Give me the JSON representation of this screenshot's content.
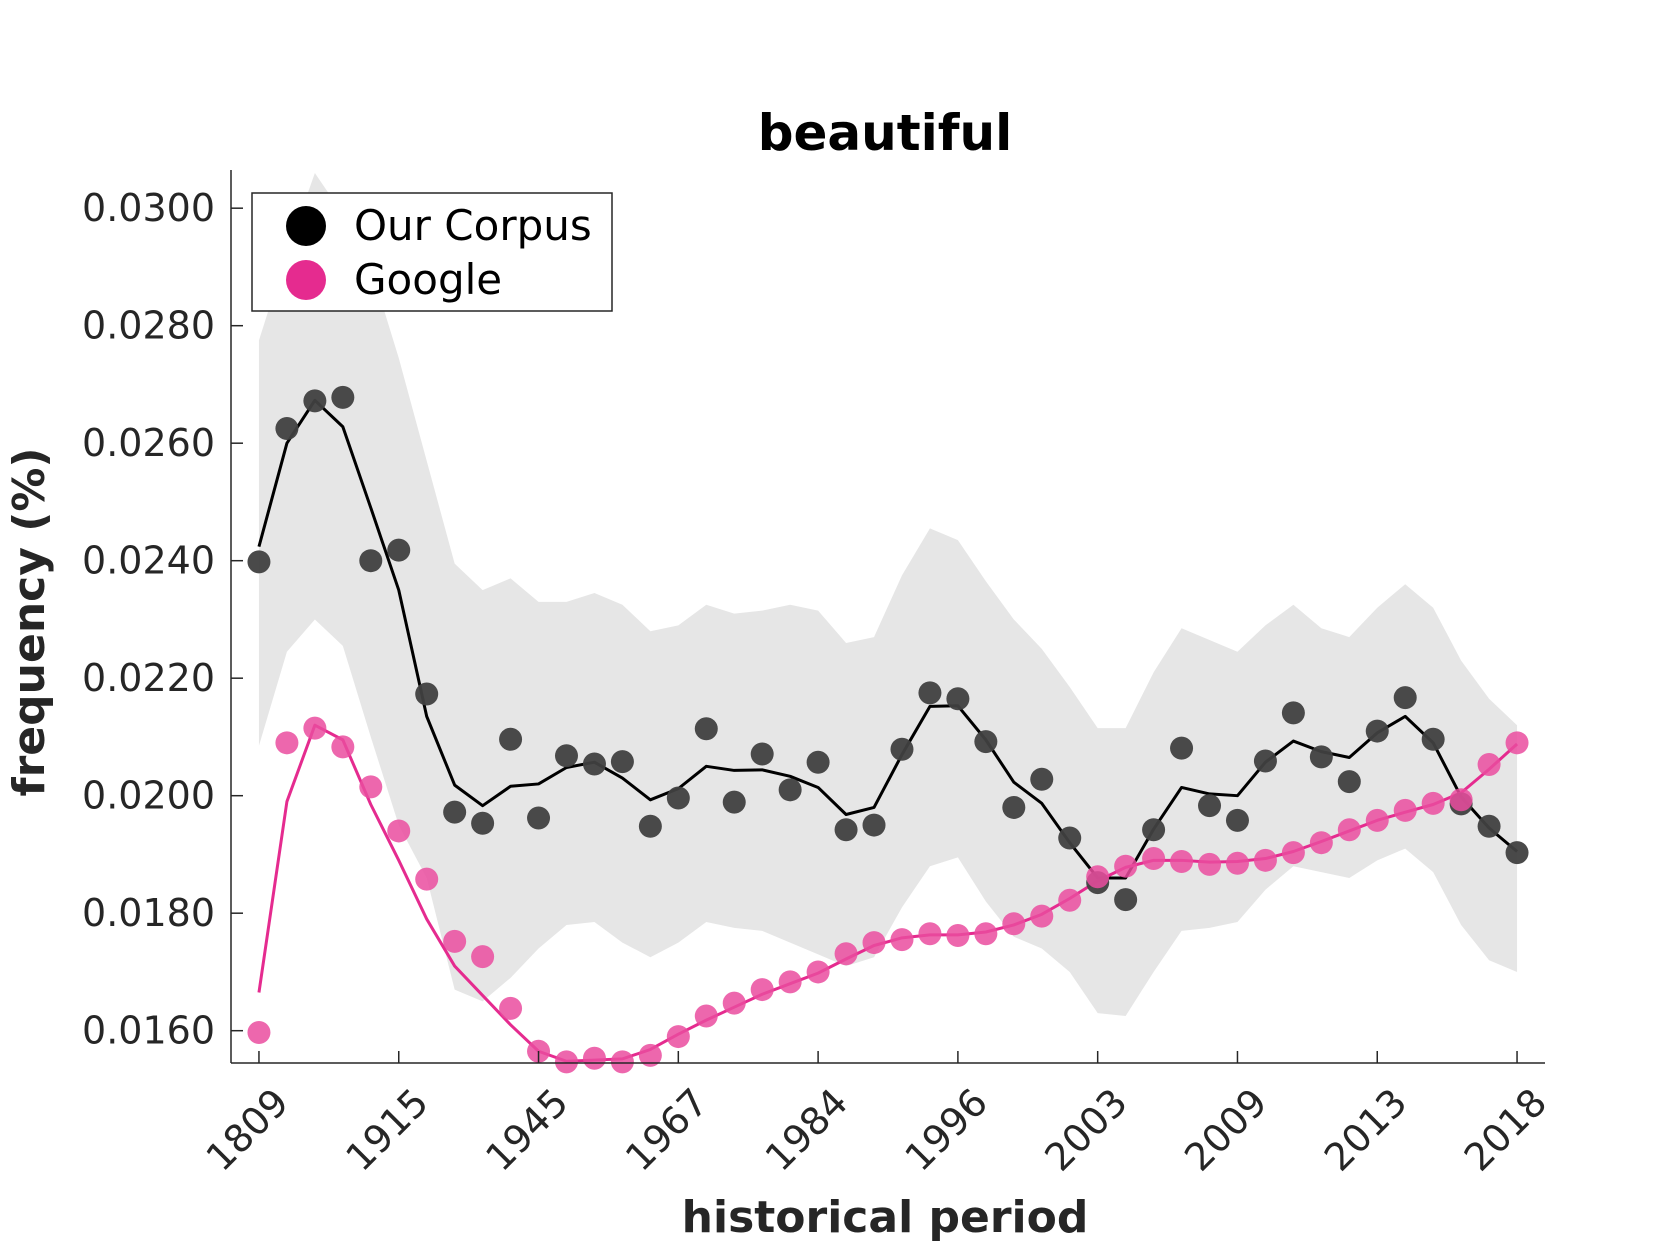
{
  "chart_data": {
    "type": "scatter",
    "title": "beautiful",
    "xlabel": "historical period",
    "ylabel": "frequency (%)",
    "x_tick_labels": [
      "1809",
      "1915",
      "1945",
      "1967",
      "1984",
      "1996",
      "2003",
      "2009",
      "2013",
      "2018"
    ],
    "y_tick_labels": [
      "0.0160",
      "0.0180",
      "0.0200",
      "0.0220",
      "0.0240",
      "0.0260",
      "0.0280",
      "0.0300"
    ],
    "y_ticks": [
      0.016,
      0.018,
      0.02,
      0.022,
      0.024,
      0.026,
      0.028,
      0.03
    ],
    "ylim": [
      0.01545,
      0.03065
    ],
    "xlim": [
      -1,
      46
    ],
    "legend_position": "top-left",
    "grid": false,
    "series": [
      {
        "name": "Our Corpus",
        "color": "#404040",
        "line_color": "#000000",
        "points": [
          0.02398,
          0.02625,
          0.02672,
          0.02678,
          0.024,
          0.02418,
          0.02173,
          0.01972,
          0.01953,
          0.02096,
          0.01962,
          0.02068,
          0.02054,
          0.02058,
          0.01948,
          0.01996,
          0.02114,
          0.01989,
          0.02071,
          0.0201,
          0.02057,
          0.01942,
          0.0195,
          0.02079,
          0.02175,
          0.02165,
          0.02092,
          0.0198,
          0.02028,
          0.01928,
          0.01852,
          0.01823,
          0.01942,
          0.02081,
          0.01983,
          0.01958,
          0.02059,
          0.02141,
          0.02066,
          0.02024,
          0.0211,
          0.02167,
          0.02096,
          0.01986,
          0.01948,
          0.01903
        ],
        "line": [
          0.02424,
          0.026,
          0.02673,
          0.02628,
          0.0249,
          0.0235,
          0.02135,
          0.02018,
          0.01983,
          0.02016,
          0.0202,
          0.02048,
          0.02057,
          0.0203,
          0.01993,
          0.02012,
          0.0205,
          0.02043,
          0.02044,
          0.02033,
          0.02014,
          0.01968,
          0.0198,
          0.0207,
          0.02152,
          0.02153,
          0.02095,
          0.02023,
          0.01987,
          0.0192,
          0.0186,
          0.0186,
          0.01943,
          0.02014,
          0.02003,
          0.02,
          0.02057,
          0.02093,
          0.02075,
          0.02065,
          0.02107,
          0.02135,
          0.0209,
          0.01998,
          0.01945,
          0.01905
        ],
        "band_upper": [
          0.02775,
          0.02925,
          0.0306,
          0.0299,
          0.029,
          0.02745,
          0.0257,
          0.02395,
          0.0235,
          0.0237,
          0.0233,
          0.0233,
          0.02345,
          0.02325,
          0.0228,
          0.0229,
          0.02325,
          0.0231,
          0.02315,
          0.02325,
          0.02315,
          0.0226,
          0.0227,
          0.02375,
          0.02455,
          0.02435,
          0.02365,
          0.023,
          0.0225,
          0.02185,
          0.02115,
          0.02115,
          0.0221,
          0.02285,
          0.02265,
          0.02245,
          0.0229,
          0.02325,
          0.02285,
          0.0227,
          0.0232,
          0.0236,
          0.0232,
          0.0223,
          0.02165,
          0.0212
        ],
        "band_lower": [
          0.02085,
          0.02245,
          0.023,
          0.02255,
          0.021,
          0.0195,
          0.0186,
          0.0167,
          0.0165,
          0.0169,
          0.0174,
          0.0178,
          0.01785,
          0.0175,
          0.01725,
          0.0175,
          0.01785,
          0.01775,
          0.0177,
          0.0175,
          0.0173,
          0.0171,
          0.01725,
          0.0181,
          0.0188,
          0.01895,
          0.0182,
          0.0176,
          0.0174,
          0.017,
          0.0163,
          0.01625,
          0.017,
          0.0177,
          0.01775,
          0.01785,
          0.0184,
          0.0188,
          0.0187,
          0.0186,
          0.0189,
          0.0191,
          0.0187,
          0.0178,
          0.0172,
          0.017
        ]
      },
      {
        "name": "Google",
        "color": "#ea4c9f",
        "line_color": "#e52b8f",
        "points": [
          0.01597,
          0.0209,
          0.02115,
          0.02083,
          0.02015,
          0.0194,
          0.01858,
          0.01752,
          0.01726,
          0.01638,
          0.01565,
          0.01547,
          0.01553,
          0.01547,
          0.01558,
          0.0159,
          0.01625,
          0.01647,
          0.0167,
          0.01683,
          0.017,
          0.01731,
          0.0175,
          0.01755,
          0.01765,
          0.01762,
          0.01765,
          0.01782,
          0.01795,
          0.01822,
          0.01862,
          0.0188,
          0.01893,
          0.01888,
          0.01883,
          0.01885,
          0.0189,
          0.01903,
          0.0192,
          0.01942,
          0.01958,
          0.01975,
          0.01987,
          0.01993,
          0.02053,
          0.0209
        ],
        "line": [
          0.01665,
          0.0199,
          0.0212,
          0.02095,
          0.01985,
          0.0189,
          0.0179,
          0.0171,
          0.0166,
          0.0161,
          0.01565,
          0.01548,
          0.0155,
          0.01552,
          0.01568,
          0.01594,
          0.01618,
          0.0164,
          0.01662,
          0.0168,
          0.01698,
          0.01722,
          0.01745,
          0.01758,
          0.01763,
          0.01763,
          0.01768,
          0.0178,
          0.01798,
          0.01825,
          0.01855,
          0.01878,
          0.0189,
          0.0189,
          0.01887,
          0.01888,
          0.01893,
          0.01905,
          0.01922,
          0.0194,
          0.01958,
          0.01972,
          0.01985,
          0.02005,
          0.02045,
          0.02088
        ]
      }
    ]
  }
}
